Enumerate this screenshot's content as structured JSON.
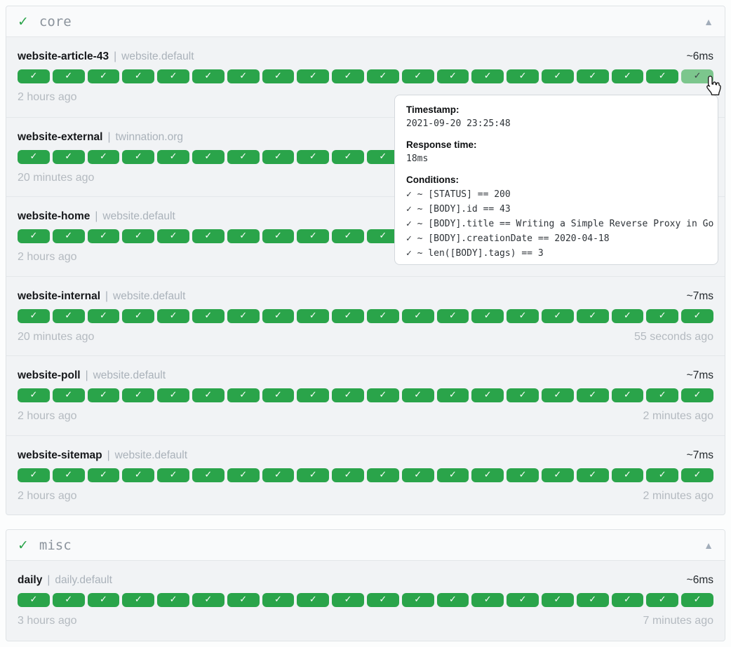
{
  "strings": {
    "separator": "|"
  },
  "colors": {
    "success_green": "#2aa44a",
    "hovered_badge_green": "#7cc68d",
    "row_background": "#f1f3f5",
    "header_background": "#f9fafb",
    "muted_text": "#b4bac0"
  },
  "tooltip": {
    "timestamp_label": "Timestamp:",
    "timestamp": "2021-09-20 23:25:48",
    "response_time_label": "Response time:",
    "response_time": "18ms",
    "conditions_label": "Conditions:",
    "conditions": [
      "✓ ~ [STATUS] == 200",
      "✓ ~ [BODY].id == 43",
      "✓ ~ [BODY].title == Writing a Simple Reverse Proxy in Go",
      "✓ ~ [BODY].creationDate == 2020-04-18",
      "✓ ~ len([BODY].tags) == 3"
    ]
  },
  "groups": [
    {
      "status_icon": "✓",
      "name": "core",
      "collapse_icon": "▲",
      "services": [
        {
          "name": "website-article-43",
          "group_label": "website.default",
          "response_time": "~6ms",
          "oldest": "2 hours ago",
          "newest": "",
          "history_count": 20,
          "badge_icon": "✓",
          "last_badge_hovered": true
        },
        {
          "name": "website-external",
          "group_label": "twinnation.org",
          "response_time": "",
          "oldest": "20 minutes ago",
          "newest": "",
          "history_count": 20,
          "badge_icon": "✓",
          "last_badge_hovered": false
        },
        {
          "name": "website-home",
          "group_label": "website.default",
          "response_time": "",
          "oldest": "2 hours ago",
          "newest": "",
          "history_count": 20,
          "badge_icon": "✓",
          "last_badge_hovered": false
        },
        {
          "name": "website-internal",
          "group_label": "website.default",
          "response_time": "~7ms",
          "oldest": "20 minutes ago",
          "newest": "55 seconds ago",
          "history_count": 20,
          "badge_icon": "✓",
          "last_badge_hovered": false
        },
        {
          "name": "website-poll",
          "group_label": "website.default",
          "response_time": "~7ms",
          "oldest": "2 hours ago",
          "newest": "2 minutes ago",
          "history_count": 20,
          "badge_icon": "✓",
          "last_badge_hovered": false
        },
        {
          "name": "website-sitemap",
          "group_label": "website.default",
          "response_time": "~7ms",
          "oldest": "2 hours ago",
          "newest": "2 minutes ago",
          "history_count": 20,
          "badge_icon": "✓",
          "last_badge_hovered": false
        }
      ]
    },
    {
      "status_icon": "✓",
      "name": "misc",
      "collapse_icon": "▲",
      "services": [
        {
          "name": "daily",
          "group_label": "daily.default",
          "response_time": "~6ms",
          "oldest": "3 hours ago",
          "newest": "7 minutes ago",
          "history_count": 20,
          "badge_icon": "✓",
          "last_badge_hovered": false
        }
      ]
    }
  ]
}
